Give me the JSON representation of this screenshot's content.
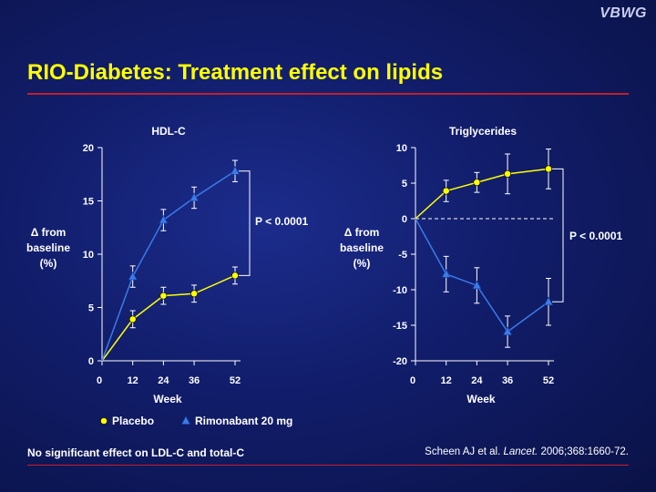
{
  "logo": "VBWG",
  "slide_title": "RIO-Diabetes: Treatment effect on lipids",
  "footnote": "No significant effect on LDL-C and total-C",
  "citation": {
    "authors": "Scheen AJ et al.",
    "journal": "Lancet.",
    "details": "2006;368:1660-72."
  },
  "legend": [
    {
      "name": "Placebo",
      "color": "#ffff00",
      "marker": "circle"
    },
    {
      "name": "Rimonabant 20 mg",
      "color": "#3a7be8",
      "marker": "triangle"
    }
  ],
  "chart_data": [
    {
      "type": "line",
      "title": "HDL-C",
      "xlabel": "Week",
      "ylabel_lines": [
        "Δ from",
        "baseline",
        "(%)"
      ],
      "x": [
        0,
        12,
        24,
        36,
        52
      ],
      "xlim": [
        0,
        52
      ],
      "ylim": [
        0,
        20
      ],
      "yticks": [
        0,
        5,
        10,
        15,
        20
      ],
      "series": [
        {
          "name": "Placebo",
          "color": "#ffff00",
          "marker": "circle",
          "values": [
            0,
            3.9,
            6.1,
            6.3,
            8.0
          ],
          "error": [
            0,
            0.8,
            0.8,
            0.8,
            0.8
          ]
        },
        {
          "name": "Rimonabant 20 mg",
          "color": "#3a7be8",
          "marker": "triangle",
          "values": [
            0,
            7.9,
            13.2,
            15.3,
            17.8
          ],
          "error": [
            0,
            1.0,
            1.0,
            1.0,
            1.0
          ]
        }
      ],
      "annotation": "P < 0.0001",
      "reference_line": null
    },
    {
      "type": "line",
      "title": "Triglycerides",
      "xlabel": "Week",
      "ylabel_lines": [
        "Δ from",
        "baseline",
        "(%)"
      ],
      "x": [
        0,
        12,
        24,
        36,
        52
      ],
      "xlim": [
        0,
        52
      ],
      "ylim": [
        -20,
        10
      ],
      "yticks": [
        -20,
        -15,
        -10,
        -5,
        0,
        5,
        10
      ],
      "series": [
        {
          "name": "Placebo",
          "color": "#ffff00",
          "marker": "circle",
          "values": [
            0,
            3.9,
            5.1,
            6.3,
            7.0
          ],
          "error": [
            0,
            1.5,
            1.4,
            2.8,
            2.8
          ]
        },
        {
          "name": "Rimonabant 20 mg",
          "color": "#3a7be8",
          "marker": "triangle",
          "values": [
            0,
            -7.8,
            -9.4,
            -15.9,
            -11.7
          ],
          "error": [
            0,
            2.5,
            2.5,
            2.2,
            3.3
          ]
        }
      ],
      "annotation": "P < 0.0001",
      "reference_line": 0
    }
  ]
}
